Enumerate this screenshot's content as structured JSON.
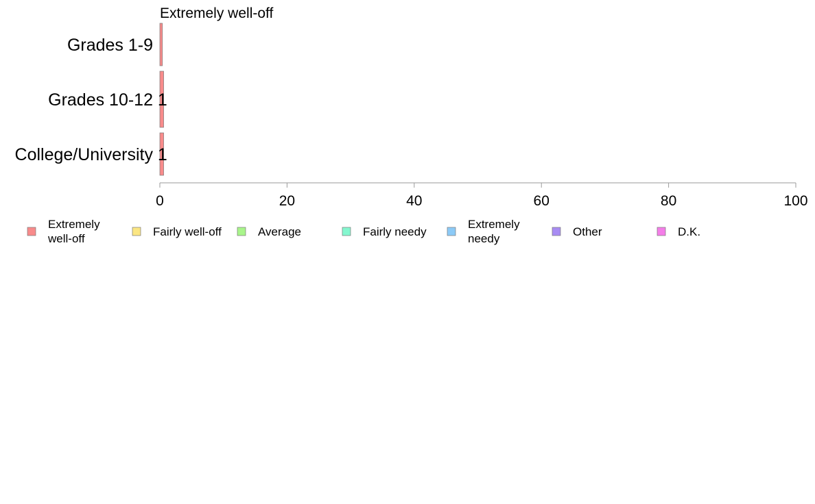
{
  "chart_data": {
    "type": "bar",
    "orientation": "horizontal",
    "stacked": true,
    "title": "Extremely well-off",
    "xlabel": "",
    "ylabel": "",
    "categories": [
      "Grades 1-9",
      "Grades 10-12",
      "College/University"
    ],
    "xlim": [
      0,
      100
    ],
    "x_ticks": [
      "0",
      "20",
      "40",
      "60",
      "80",
      "100"
    ],
    "grid": false,
    "legend_placement": "bottom",
    "series": [
      {
        "name": "Extremely\nwell-off",
        "color": "#f88b8b",
        "values": [
          0.4,
          0.6,
          0.6
        ],
        "labels": [
          "",
          "1",
          "1"
        ]
      },
      {
        "name": "Fairly well-off",
        "color": "#fbe683",
        "values": [
          0,
          0,
          0
        ],
        "labels": [
          "",
          "",
          ""
        ]
      },
      {
        "name": "Average",
        "color": "#a9f58b",
        "values": [
          0,
          0,
          0
        ],
        "labels": [
          "",
          "",
          ""
        ]
      },
      {
        "name": "Fairly needy",
        "color": "#85f7cf",
        "values": [
          0,
          0,
          0
        ],
        "labels": [
          "",
          "",
          ""
        ]
      },
      {
        "name": "Extremely\nneedy",
        "color": "#8ccaf7",
        "values": [
          0,
          0,
          0
        ],
        "labels": [
          "",
          "",
          ""
        ]
      },
      {
        "name": "Other",
        "color": "#a88cf3",
        "values": [
          0,
          0,
          0
        ],
        "labels": [
          "",
          "",
          ""
        ]
      },
      {
        "name": "D.K.",
        "color": "#f47ee8",
        "values": [
          0,
          0,
          0
        ],
        "labels": [
          "",
          "",
          ""
        ]
      }
    ]
  }
}
